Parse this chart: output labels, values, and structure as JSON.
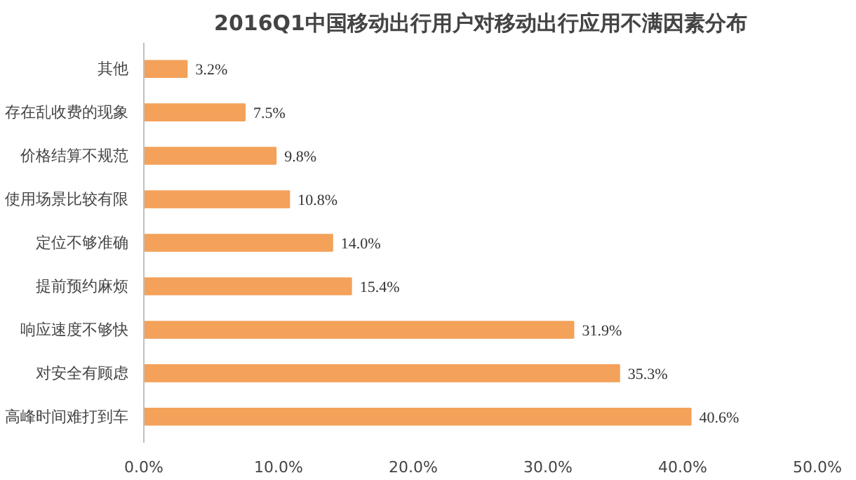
{
  "chart_data": {
    "type": "bar",
    "orientation": "horizontal",
    "title": "2016Q1中国移动出行用户对移动出行应用不满因素分布",
    "categories": [
      "其他",
      "存在乱收费的现象",
      "价格结算不规范",
      "使用场景比较有限",
      "定位不够准确",
      "提前预约麻烦",
      "响应速度不够快",
      "对安全有顾虑",
      "高峰时间难打到车"
    ],
    "values": [
      3.2,
      7.5,
      9.8,
      10.8,
      14.0,
      15.4,
      31.9,
      35.3,
      40.6
    ],
    "value_labels": [
      "3.2%",
      "7.5%",
      "9.8%",
      "10.8%",
      "14.0%",
      "15.4%",
      "31.9%",
      "35.3%",
      "40.6%"
    ],
    "color": "#f4a15a",
    "xlim": [
      0,
      50
    ],
    "xticks": [
      {
        "value": 0,
        "label": "0.0%"
      },
      {
        "value": 10,
        "label": "10.0%"
      },
      {
        "value": 20,
        "label": "20.0%"
      },
      {
        "value": 30,
        "label": "30.0%"
      },
      {
        "value": 40,
        "label": "40.0%"
      },
      {
        "value": 50,
        "label": "50.0%"
      }
    ],
    "grid": false
  }
}
